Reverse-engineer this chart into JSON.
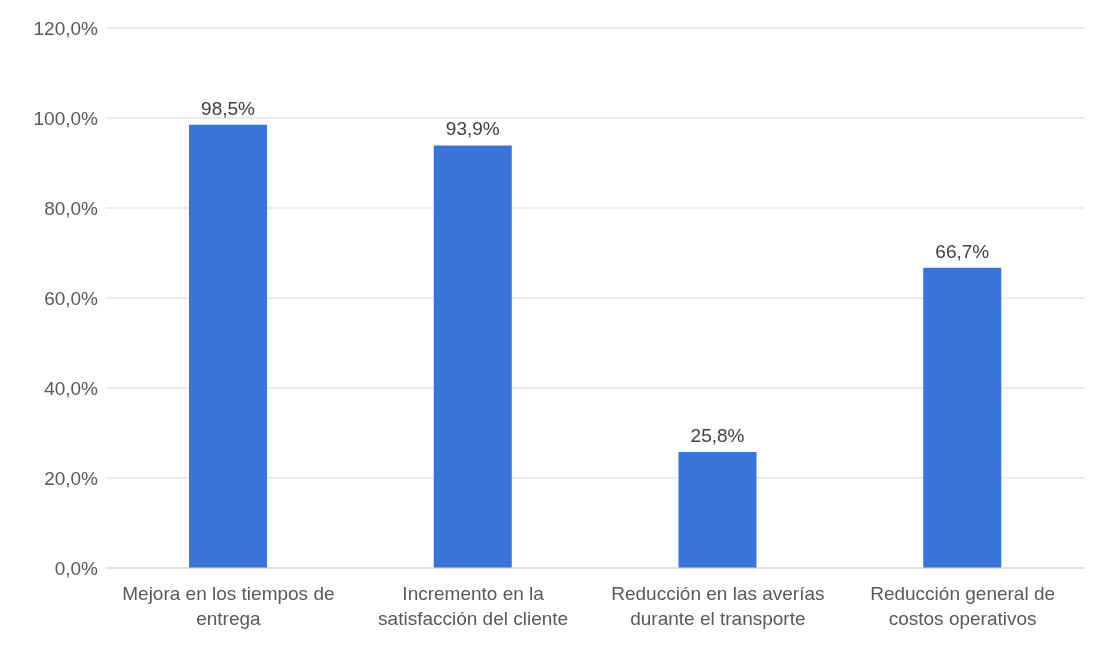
{
  "chart_data": {
    "type": "bar",
    "categories": [
      "Mejora en los tiempos de entrega",
      "Incremento en la satisfacción del cliente",
      "Reducción en las averías durante el transporte",
      "Reducción general de costos operativos"
    ],
    "values": [
      98.5,
      93.9,
      25.8,
      66.7
    ],
    "color": "#3874d9",
    "value_labels": [
      "98,5%",
      "93,9%",
      "25,8%",
      "66,7%"
    ],
    "ylim": [
      0,
      120
    ],
    "yticks": [
      {
        "value": 0,
        "label": "0,0%"
      },
      {
        "value": 20,
        "label": "20,0%"
      },
      {
        "value": 40,
        "label": "40,0%"
      },
      {
        "value": 60,
        "label": "60,0%"
      },
      {
        "value": 80,
        "label": "80,0%"
      },
      {
        "value": 100,
        "label": "100,0%"
      },
      {
        "value": 120,
        "label": "120,0%"
      }
    ],
    "grid": "y",
    "legend": false
  }
}
